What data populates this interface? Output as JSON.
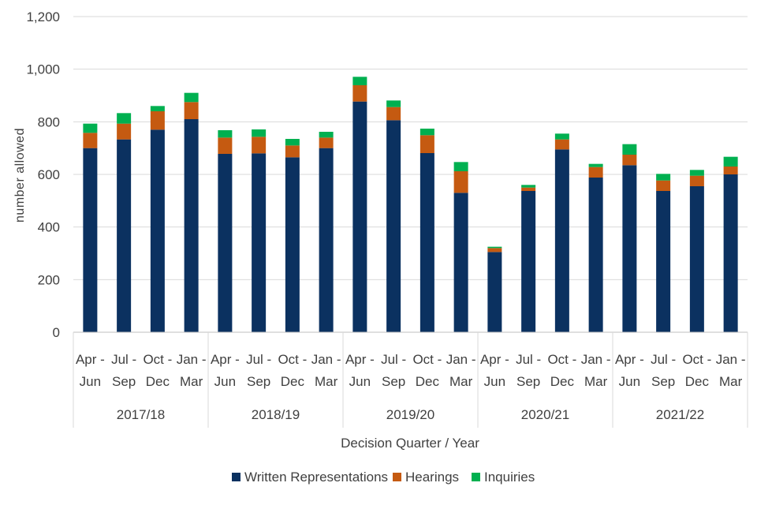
{
  "chart_data": {
    "type": "bar",
    "stacked": true,
    "title": "",
    "xlabel": "Decision Quarter / Year",
    "ylabel": "number allowed",
    "ylim": [
      0,
      1200
    ],
    "yticks": [
      0,
      200,
      400,
      600,
      800,
      1000,
      1200
    ],
    "ytick_labels": [
      "0",
      "200",
      "400",
      "600",
      "800",
      "1,000",
      "1,200"
    ],
    "grid": true,
    "legend_position": "bottom",
    "quarter_labels": [
      [
        "Apr -",
        "Jun"
      ],
      [
        "Jul -",
        "Sep"
      ],
      [
        "Oct -",
        "Dec"
      ],
      [
        "Jan -",
        "Mar"
      ]
    ],
    "years": [
      "2017/18",
      "2018/19",
      "2019/20",
      "2020/21",
      "2021/22"
    ],
    "categories": [
      "Apr - Jun 2017/18",
      "Jul - Sep 2017/18",
      "Oct - Dec 2017/18",
      "Jan - Mar 2017/18",
      "Apr - Jun 2018/19",
      "Jul - Sep 2018/19",
      "Oct - Dec 2018/19",
      "Jan - Mar 2018/19",
      "Apr - Jun 2019/20",
      "Jul - Sep 2019/20",
      "Oct - Dec 2019/20",
      "Jan - Mar 2019/20",
      "Apr - Jun 2020/21",
      "Jul - Sep 2020/21",
      "Oct - Dec 2020/21",
      "Jan - Mar 2020/21",
      "Apr - Jun 2021/22",
      "Jul - Sep 2021/22",
      "Oct - Dec 2021/22",
      "Jan - Mar 2021/22"
    ],
    "series": [
      {
        "name": "Written Representations",
        "color": "#0b3160",
        "values": [
          700,
          733,
          770,
          810,
          678,
          680,
          665,
          700,
          877,
          806,
          681,
          530,
          305,
          537,
          695,
          588,
          635,
          537,
          555,
          600
        ]
      },
      {
        "name": "Hearings",
        "color": "#c55a11",
        "values": [
          58,
          60,
          70,
          65,
          62,
          63,
          45,
          40,
          62,
          50,
          68,
          82,
          15,
          13,
          38,
          40,
          40,
          40,
          40,
          30
        ]
      },
      {
        "name": "Inquiries",
        "color": "#00b050",
        "values": [
          35,
          40,
          20,
          35,
          28,
          28,
          25,
          22,
          32,
          25,
          25,
          35,
          5,
          10,
          22,
          12,
          40,
          25,
          22,
          37
        ]
      }
    ]
  }
}
